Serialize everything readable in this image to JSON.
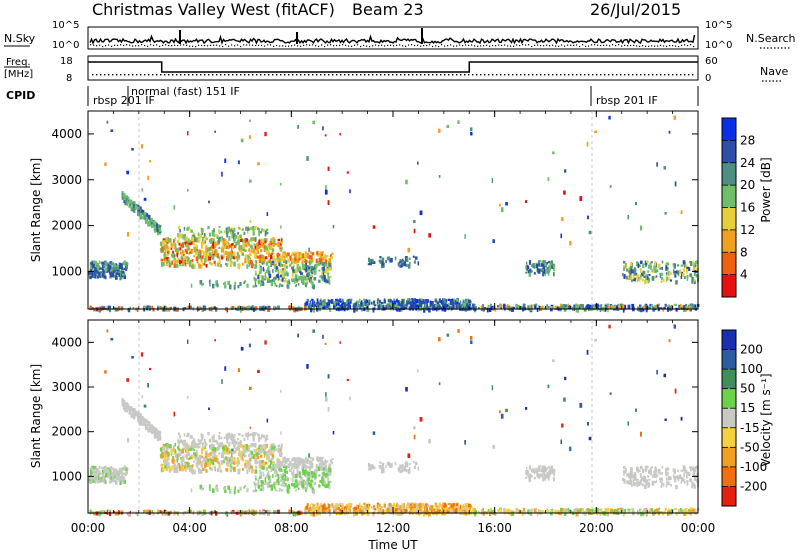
{
  "header": {
    "title": "Christmas Valley West (fitACF)",
    "beam": "Beam 23",
    "date": "26/Jul/2015"
  },
  "summary": {
    "nsky_label": "N.Sky",
    "nsearch_label": "N.Search",
    "freq_label": "Freq.",
    "freq_unit": "[MHz]",
    "nave_label": "Nave",
    "cpid_label": "CPID",
    "nsky_ticks": [
      "10^5",
      "10^0"
    ],
    "nsearch_ticks": [
      "10^5",
      "10^0"
    ],
    "freq_ticks": [
      "18",
      "8"
    ],
    "nave_ticks": [
      "60",
      "0"
    ],
    "cpid_segments": [
      {
        "label": "rbsp 201 IF",
        "start_h": 0,
        "end_h": 2
      },
      {
        "label": "normal (fast) 151 IF",
        "start_h": 2,
        "end_h": 20
      },
      {
        "label": "rbsp 201 IF",
        "start_h": 20,
        "end_h": 24
      }
    ],
    "freq_steps": [
      {
        "start_h": 0,
        "end_h": 2.9,
        "level": "high"
      },
      {
        "start_h": 2.9,
        "end_h": 15,
        "level": "low"
      },
      {
        "start_h": 15,
        "end_h": 24,
        "level": "high"
      }
    ]
  },
  "chart_data": [
    {
      "type": "heatmap",
      "panel": "power",
      "ylabel": "Slant Range [km]",
      "xlabel": "Time UT",
      "xlim": [
        0,
        24
      ],
      "ylim": [
        180,
        4500
      ],
      "x_ticks": [
        "00:00",
        "04:00",
        "08:00",
        "12:00",
        "16:00",
        "20:00",
        "00:00"
      ],
      "y_ticks": [
        1000,
        2000,
        3000,
        4000
      ],
      "colorbar_label": "Power [dB]",
      "colorbar_ticks": [
        "4",
        "8",
        "12",
        "16",
        "20",
        "24",
        "28"
      ],
      "colorbar_colors": [
        "#0b2fe6",
        "#2c4fa8",
        "#4f8f83",
        "#6fbf6a",
        "#e6cf3a",
        "#f0a020",
        "#f06010",
        "#e61010"
      ]
    },
    {
      "type": "heatmap",
      "panel": "velocity",
      "ylabel": "Slant Range [km]",
      "xlabel": "Time UT",
      "xlim": [
        0,
        24
      ],
      "ylim": [
        180,
        4500
      ],
      "x_ticks": [
        "00:00",
        "04:00",
        "08:00",
        "12:00",
        "16:00",
        "20:00",
        "00:00"
      ],
      "y_ticks": [
        1000,
        2000,
        3000,
        4000
      ],
      "colorbar_label": "Velocity [m s⁻¹]",
      "colorbar_ticks": [
        "200",
        "100",
        "50",
        "15",
        "-15",
        "-50",
        "-100",
        "-200"
      ],
      "colorbar_colors": [
        "#1a2fb0",
        "#2d5da0",
        "#3f8f5a",
        "#6bd24a",
        "#c8c8c4",
        "#f5d040",
        "#f0a020",
        "#f07010",
        "#e62010"
      ]
    }
  ]
}
